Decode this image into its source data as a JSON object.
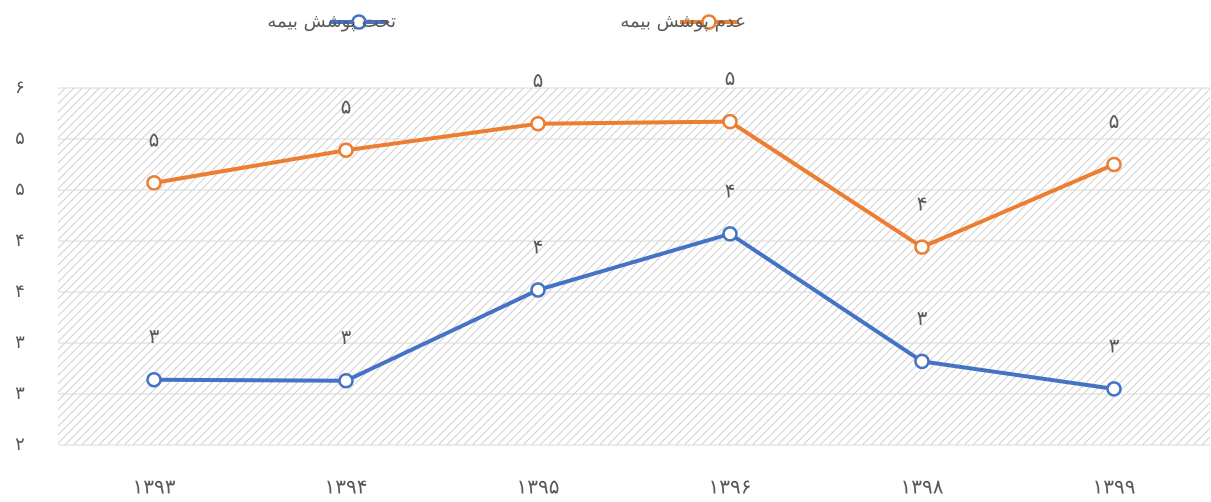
{
  "chart_data": {
    "type": "line",
    "categories": [
      "۱۳۹۳",
      "۱۳۹۴",
      "۱۳۹۵",
      "۱۳۹۶",
      "۱۳۹۸",
      "۱۳۹۹"
    ],
    "series": [
      {
        "name": "تحت پوشش بیمه",
        "color": "#4472c4",
        "values": [
          2.64,
          2.63,
          3.52,
          4.07,
          2.82,
          2.55
        ],
        "value_labels": [
          "۳",
          "۳",
          "۴",
          "۴",
          "۳",
          "۳"
        ]
      },
      {
        "name": "عدم پوشش بیمه",
        "color": "#ed7d31",
        "values": [
          4.57,
          4.89,
          5.15,
          5.17,
          3.94,
          4.75
        ],
        "value_labels": [
          "۵",
          "۵",
          "۵",
          "۵",
          "۴",
          "۵"
        ]
      }
    ],
    "ylim": [
      2,
      5.5
    ],
    "yticks": [
      {
        "value": 2,
        "label": "۲"
      },
      {
        "value": 2.5,
        "label": "۳"
      },
      {
        "value": 3,
        "label": "۳"
      },
      {
        "value": 3.5,
        "label": "۴"
      },
      {
        "value": 4,
        "label": "۴"
      },
      {
        "value": 4.5,
        "label": "۵"
      },
      {
        "value": 5,
        "label": "۵"
      },
      {
        "value": 5.5,
        "label": "۶"
      }
    ],
    "grid": true,
    "legend": "top"
  }
}
